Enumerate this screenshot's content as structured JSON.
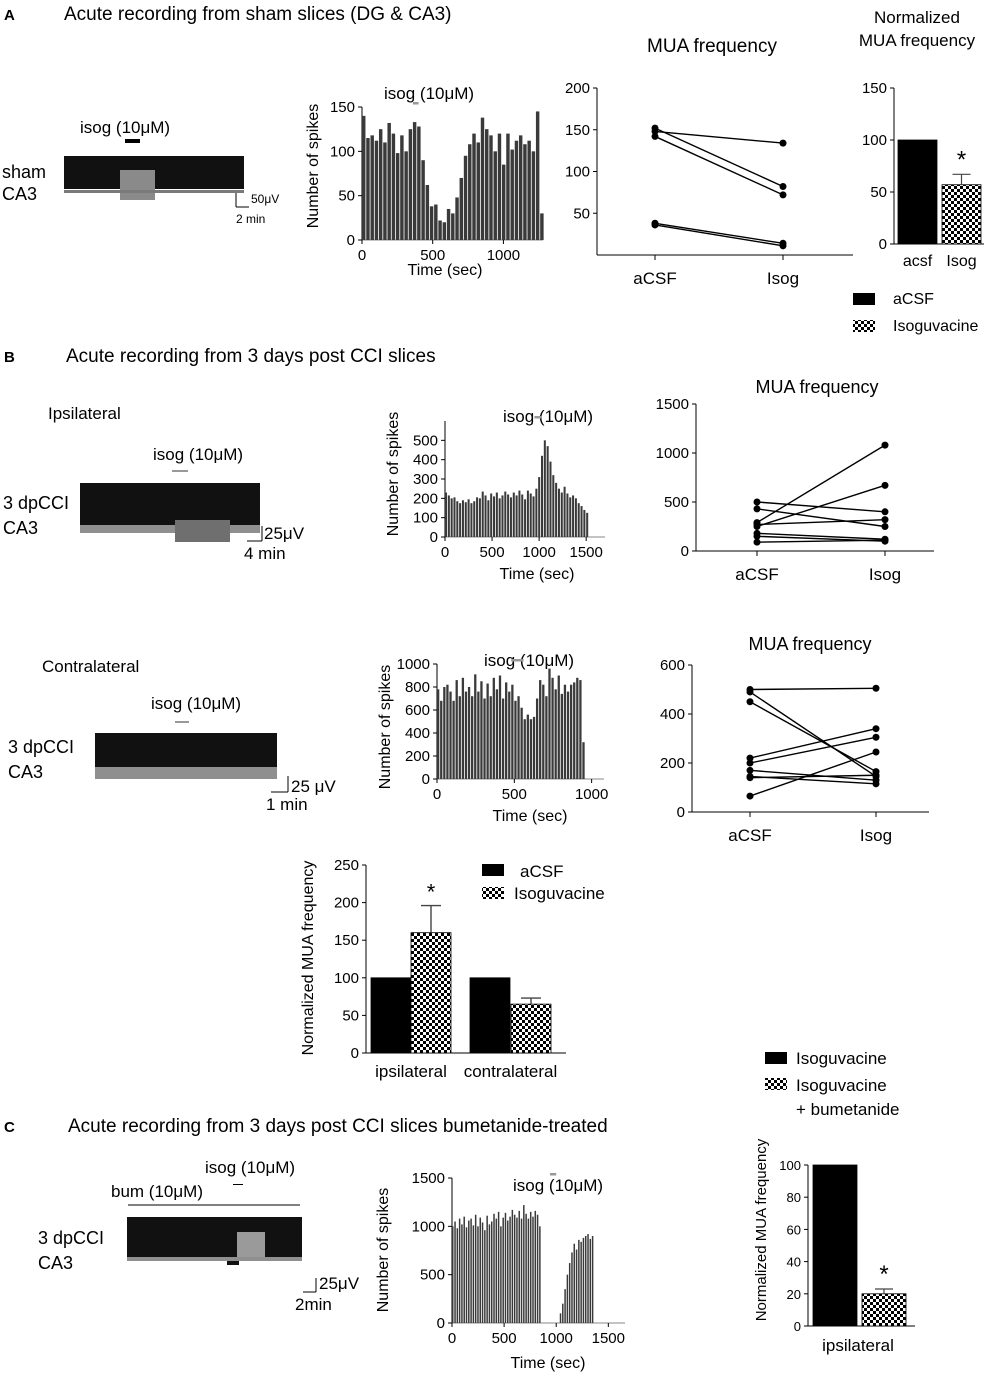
{
  "colors": {
    "bar": "#3a3a3a",
    "black": "#000000",
    "trace_gray": "#9a9a9a",
    "drug_bar_gray": "#999999"
  },
  "panels": {
    "A": {
      "letter": "A",
      "title": "Acute recording from sham slices (DG & CA3)",
      "trace": {
        "drug_label": "isog (10μM)",
        "label_line1": "sham",
        "label_line2": "CA3",
        "scale_v": "50μV",
        "scale_t": "2 min"
      }
    },
    "B": {
      "letter": "B",
      "title": "Acute recording from 3 days post CCI slices",
      "ipsi_label": "Ipsilateral",
      "contra_label": "Contralateral",
      "trace_ipsi": {
        "drug_label": "isog (10μM)",
        "label_line1": "3 dpCCI",
        "label_line2": "CA3",
        "scale_v": "25μV",
        "scale_t": "4 min"
      },
      "trace_contra": {
        "drug_label": "isog (10μM)",
        "label_line1": "3 dpCCI",
        "label_line2": "CA3",
        "scale_v": "25 μV",
        "scale_t": "1 min"
      }
    },
    "C": {
      "letter": "C",
      "title": "Acute recording from 3 days post CCI slices bumetanide-treated",
      "trace": {
        "drug_label": "isog (10μM)",
        "bum_label": "bum (10μM)",
        "label_line1": "3 dpCCI",
        "label_line2": "CA3",
        "scale_v": "25μV",
        "scale_t": "2min"
      }
    }
  },
  "chart_data": [
    {
      "id": "A_hist",
      "type": "bar",
      "title": "",
      "xlabel": "Time (sec)",
      "ylabel": "Number of spikes",
      "annotation": "isog (10μM)",
      "drug_window": [
        360,
        400
      ],
      "xlim": [
        0,
        1280
      ],
      "ylim": [
        0,
        150
      ],
      "xticks": [
        0,
        500,
        1000
      ],
      "yticks": [
        0,
        50,
        100,
        150
      ],
      "bin_width": 30,
      "values": [
        140,
        115,
        118,
        112,
        125,
        110,
        132,
        120,
        98,
        118,
        100,
        125,
        133,
        128,
        90,
        62,
        38,
        40,
        22,
        20,
        35,
        30,
        48,
        70,
        95,
        108,
        120,
        110,
        138,
        125,
        118,
        100,
        120,
        85,
        120,
        102,
        112,
        118,
        108,
        112,
        100,
        145,
        30
      ]
    },
    {
      "id": "A_mua",
      "type": "line",
      "title": "MUA frequency",
      "categories": [
        "aCSF",
        "Isog"
      ],
      "ylim": [
        0,
        200
      ],
      "yticks": [
        50,
        100,
        150,
        200
      ],
      "series": [
        {
          "name": "s1",
          "values": [
            152,
            82
          ]
        },
        {
          "name": "s2",
          "values": [
            148,
            134
          ]
        },
        {
          "name": "s3",
          "values": [
            142,
            72
          ]
        },
        {
          "name": "s4",
          "values": [
            38,
            14
          ]
        },
        {
          "name": "s5",
          "values": [
            36,
            11
          ]
        }
      ]
    },
    {
      "id": "A_norm",
      "type": "bar",
      "title": "Normalized MUA frequency",
      "title_line1": "Normalized",
      "title_line2": "MUA frequency",
      "categories": [
        "acsf",
        "Isog"
      ],
      "values": [
        100,
        57
      ],
      "errors": [
        0,
        10
      ],
      "significance": [
        "",
        "*"
      ],
      "ylim": [
        0,
        150
      ],
      "yticks": [
        0,
        50,
        100,
        150
      ],
      "legend": [
        "aCSF",
        "Isoguvacine"
      ]
    },
    {
      "id": "B_ipsi_hist",
      "type": "bar",
      "xlabel": "Time (sec)",
      "ylabel": "Number of spikes",
      "annotation": "isog (10μM)",
      "drug_window": [
        950,
        1030
      ],
      "xlim": [
        0,
        1700
      ],
      "ylim": [
        0,
        600
      ],
      "xticks": [
        0,
        500,
        1000,
        1500
      ],
      "yticks": [
        0,
        100,
        200,
        300,
        400,
        500
      ],
      "bin_width": 30,
      "values": [
        230,
        215,
        200,
        205,
        185,
        175,
        190,
        180,
        195,
        175,
        185,
        205,
        200,
        235,
        215,
        190,
        225,
        210,
        230,
        200,
        215,
        235,
        220,
        205,
        230,
        215,
        240,
        220,
        195,
        240,
        225,
        210,
        250,
        310,
        420,
        500,
        470,
        390,
        320,
        280,
        250,
        230,
        260,
        225,
        205,
        215,
        200,
        175,
        160,
        140,
        125
      ]
    },
    {
      "id": "B_ipsi_mua",
      "type": "line",
      "title": "MUA frequency",
      "categories": [
        "aCSF",
        "Isog"
      ],
      "ylim": [
        0,
        1500
      ],
      "yticks": [
        0,
        500,
        1000,
        1500
      ],
      "series": [
        {
          "name": "s1",
          "values": [
            500,
            400
          ]
        },
        {
          "name": "s2",
          "values": [
            430,
            250
          ]
        },
        {
          "name": "s3",
          "values": [
            290,
            1080
          ]
        },
        {
          "name": "s4",
          "values": [
            270,
            320
          ]
        },
        {
          "name": "s5",
          "values": [
            250,
            670
          ]
        },
        {
          "name": "s6",
          "values": [
            180,
            120
          ]
        },
        {
          "name": "s7",
          "values": [
            150,
            100
          ]
        },
        {
          "name": "s8",
          "values": [
            90,
            110
          ]
        }
      ]
    },
    {
      "id": "B_contra_hist",
      "type": "bar",
      "xlabel": "Time (sec)",
      "ylabel": "Number of spikes",
      "annotation": "isog (10μM)",
      "drug_window": [
        480,
        560
      ],
      "xlim": [
        0,
        1080
      ],
      "ylim": [
        0,
        1000
      ],
      "xticks": [
        0,
        500,
        1000
      ],
      "yticks": [
        0,
        200,
        400,
        600,
        800,
        1000
      ],
      "bin_width": 20,
      "values": [
        780,
        680,
        800,
        820,
        760,
        680,
        860,
        720,
        880,
        760,
        800,
        720,
        910,
        760,
        850,
        700,
        830,
        720,
        880,
        780,
        900,
        700,
        840,
        760,
        820,
        680,
        720,
        620,
        520,
        560,
        520,
        540,
        700,
        860,
        820,
        720,
        960,
        880,
        780,
        900,
        740,
        820,
        760,
        820,
        840,
        880,
        860,
        320
      ]
    },
    {
      "id": "B_contra_mua",
      "type": "line",
      "title": "MUA frequency",
      "categories": [
        "aCSF",
        "Isog"
      ],
      "ylim": [
        0,
        600
      ],
      "yticks": [
        0,
        200,
        400,
        600
      ],
      "series": [
        {
          "name": "s1",
          "values": [
            500,
            505
          ]
        },
        {
          "name": "s2",
          "values": [
            490,
            145
          ]
        },
        {
          "name": "s3",
          "values": [
            450,
            165
          ]
        },
        {
          "name": "s4",
          "values": [
            220,
            340
          ]
        },
        {
          "name": "s5",
          "values": [
            200,
            305
          ]
        },
        {
          "name": "s6",
          "values": [
            170,
            130
          ]
        },
        {
          "name": "s7",
          "values": [
            145,
            115
          ]
        },
        {
          "name": "s8",
          "values": [
            140,
            150
          ]
        },
        {
          "name": "s9",
          "values": [
            65,
            245
          ]
        }
      ]
    },
    {
      "id": "B_norm",
      "type": "bar",
      "ylabel": "Normalized MUA frequency",
      "categories": [
        "ipsilateral",
        "contralateral"
      ],
      "series": [
        {
          "name": "aCSF",
          "values": [
            100,
            100
          ],
          "errors": [
            0,
            0
          ]
        },
        {
          "name": "Isoguvacine",
          "values": [
            160,
            65
          ],
          "errors": [
            36,
            8
          ]
        }
      ],
      "significance": [
        "*",
        ""
      ],
      "ylim": [
        0,
        250
      ],
      "yticks": [
        0,
        50,
        100,
        150,
        200,
        250
      ],
      "legend": [
        "aCSF",
        "Isoguvacine"
      ]
    },
    {
      "id": "C_hist",
      "type": "bar",
      "xlabel": "Time (sec)",
      "ylabel": "Number of spikes",
      "annotation": "isog (10μM)",
      "drug_window": [
        940,
        1000
      ],
      "xlim": [
        0,
        1660
      ],
      "ylim": [
        0,
        1500
      ],
      "xticks": [
        0,
        500,
        1000,
        1500
      ],
      "yticks": [
        0,
        500,
        1000,
        1500
      ],
      "bin_width": 22,
      "values": [
        1000,
        1050,
        980,
        1080,
        1020,
        1100,
        990,
        1060,
        1080,
        1010,
        1120,
        1000,
        1090,
        1040,
        960,
        1110,
        1020,
        1050,
        1130,
        1080,
        1150,
        1000,
        1090,
        1140,
        1060,
        1100,
        1170,
        1120,
        1090,
        1160,
        1080,
        1220,
        1130,
        1080,
        1150,
        1100,
        1160,
        1120,
        1000,
        0,
        0,
        0,
        0,
        0,
        0,
        0,
        0,
        100,
        200,
        350,
        500,
        620,
        730,
        820,
        760,
        860,
        840,
        880,
        900,
        920,
        870,
        900
      ]
    },
    {
      "id": "C_norm",
      "type": "bar",
      "ylabel": "Normalized MUA frequency",
      "categories": [
        "ipsilateral"
      ],
      "series": [
        {
          "name": "Isoguvacine",
          "values": [
            100
          ],
          "errors": [
            0
          ]
        },
        {
          "name": "Isoguvacine + bumetanide",
          "values": [
            20
          ],
          "errors": [
            3
          ]
        }
      ],
      "significance": [
        "",
        "*"
      ],
      "ylim": [
        0,
        100
      ],
      "yticks": [
        0,
        20,
        40,
        60,
        80,
        100
      ],
      "legend": [
        "Isoguvacine",
        "Isoguvacine",
        "+ bumetanide"
      ]
    }
  ]
}
